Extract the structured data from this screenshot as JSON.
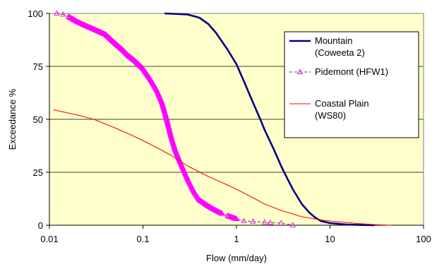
{
  "chart_data": {
    "type": "line",
    "title": "",
    "xlabel": "Flow (mm/day)",
    "ylabel": "Exceedance %",
    "x_scale": "log",
    "xlim": [
      0.01,
      100
    ],
    "ylim": [
      0,
      100
    ],
    "x_tick_labels": [
      "0.01",
      "0.1",
      "1",
      "10",
      "100"
    ],
    "y_tick_labels": [
      "0",
      "25",
      "50",
      "75",
      "100"
    ],
    "grid": "horizontal",
    "plot_background": "#ffffcc",
    "legend_position": "top-right",
    "series": [
      {
        "name": "Mountain (Coweeta 2)",
        "legend_lines": [
          "Mountain",
          "(Coweeta 2)"
        ],
        "color": "#000080",
        "marker": "none",
        "points": [
          [
            0.17,
            100
          ],
          [
            0.3,
            99.5
          ],
          [
            0.4,
            98
          ],
          [
            0.5,
            95
          ],
          [
            0.6,
            91
          ],
          [
            0.8,
            83
          ],
          [
            1.0,
            76
          ],
          [
            1.2,
            68
          ],
          [
            1.5,
            58
          ],
          [
            1.8,
            50
          ],
          [
            2.0,
            45
          ],
          [
            2.5,
            36
          ],
          [
            3.0,
            28
          ],
          [
            3.5,
            22
          ],
          [
            4.0,
            17
          ],
          [
            5.0,
            10
          ],
          [
            6.0,
            6
          ],
          [
            7.0,
            3.5
          ],
          [
            8.0,
            2
          ],
          [
            10.0,
            1
          ],
          [
            15.0,
            0.3
          ],
          [
            22.0,
            0.1
          ],
          [
            30.0,
            0
          ]
        ]
      },
      {
        "name": "Pidemont (HFW1)",
        "legend_lines": [
          "Pidemont (HFW1)"
        ],
        "color": "#ff00ff",
        "marker": "triangle",
        "points": [
          [
            0.012,
            100
          ],
          [
            0.014,
            99.5
          ],
          [
            0.016,
            98.5
          ],
          [
            0.02,
            96
          ],
          [
            0.025,
            94
          ],
          [
            0.03,
            92.5
          ],
          [
            0.04,
            90
          ],
          [
            0.05,
            86
          ],
          [
            0.06,
            83
          ],
          [
            0.07,
            80
          ],
          [
            0.08,
            78
          ],
          [
            0.1,
            74
          ],
          [
            0.12,
            69
          ],
          [
            0.14,
            64
          ],
          [
            0.16,
            58
          ],
          [
            0.18,
            50
          ],
          [
            0.2,
            42
          ],
          [
            0.22,
            36
          ],
          [
            0.25,
            30
          ],
          [
            0.3,
            22
          ],
          [
            0.35,
            16
          ],
          [
            0.4,
            12
          ],
          [
            0.5,
            9
          ],
          [
            0.6,
            7
          ],
          [
            0.7,
            5.5
          ],
          [
            0.8,
            4.5
          ],
          [
            1.0,
            3
          ],
          [
            1.2,
            2
          ],
          [
            1.5,
            1.8
          ],
          [
            2.0,
            1.4
          ],
          [
            2.3,
            1.2
          ],
          [
            3.0,
            1
          ],
          [
            4.0,
            0
          ]
        ]
      },
      {
        "name": "Coastal Plain (WS80)",
        "legend_lines": [
          "Coastal Plain",
          "(WS80)"
        ],
        "color": "#ff0000",
        "marker": "none",
        "points": [
          [
            0.011,
            54.5
          ],
          [
            0.02,
            52
          ],
          [
            0.03,
            50
          ],
          [
            0.05,
            46
          ],
          [
            0.08,
            42
          ],
          [
            0.1,
            40
          ],
          [
            0.15,
            36
          ],
          [
            0.2,
            33
          ],
          [
            0.3,
            28
          ],
          [
            0.5,
            23
          ],
          [
            0.8,
            19
          ],
          [
            1.0,
            17
          ],
          [
            1.5,
            13
          ],
          [
            2.0,
            10
          ],
          [
            3.0,
            7
          ],
          [
            5.0,
            4
          ],
          [
            8.0,
            2.5
          ],
          [
            10.0,
            2
          ],
          [
            20.0,
            0.8
          ],
          [
            30.0,
            0.3
          ],
          [
            45.0,
            0
          ]
        ]
      }
    ]
  }
}
